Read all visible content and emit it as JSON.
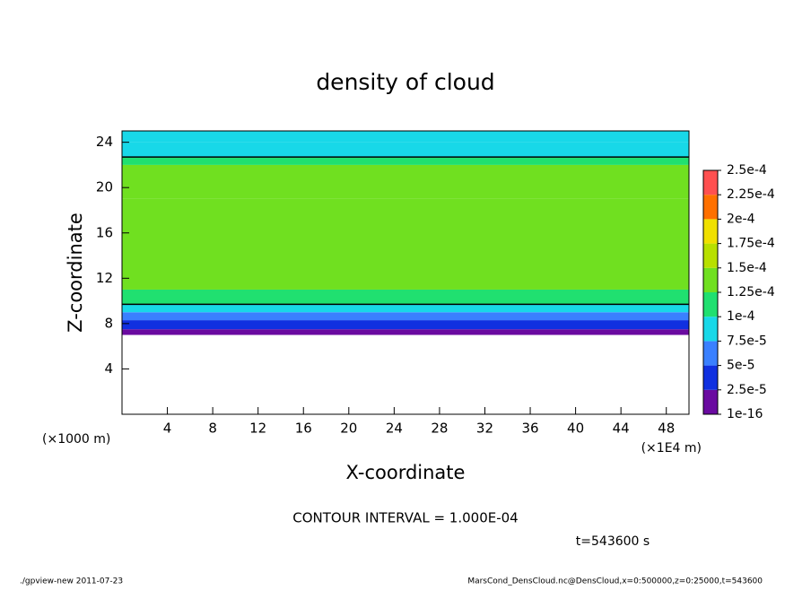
{
  "chart_data": {
    "type": "heatmap",
    "title": "density of cloud",
    "x_label": "X-coordinate",
    "y_label": "Z-coordinate",
    "x_unit": "(×1E4 m)",
    "y_unit": "(×1000 m)",
    "xlim": [
      0,
      50
    ],
    "xticks": [
      4,
      8,
      12,
      16,
      20,
      24,
      28,
      32,
      36,
      40,
      44,
      48
    ],
    "ylim": [
      0,
      25
    ],
    "yticks": [
      4,
      8,
      12,
      16,
      20,
      24
    ],
    "z_edges": [
      7,
      7.5,
      8.3,
      9,
      9.7,
      11,
      19,
      22,
      22.7,
      24,
      25
    ],
    "values": [
      1e-05,
      3e-05,
      6e-05,
      8e-05,
      0.00011,
      0.00014,
      0.00013,
      0.00011,
      9e-05,
      8e-05
    ],
    "colorbar_ticks": [
      {
        "value": 1e-16,
        "label": "1e-16"
      },
      {
        "value": 2.5e-05,
        "label": "2.5e-5"
      },
      {
        "value": 5e-05,
        "label": "5e-5"
      },
      {
        "value": 7.5e-05,
        "label": "7.5e-5"
      },
      {
        "value": 0.0001,
        "label": "1e-4"
      },
      {
        "value": 0.000125,
        "label": "1.25e-4"
      },
      {
        "value": 0.00015,
        "label": "1.5e-4"
      },
      {
        "value": 0.000175,
        "label": "1.75e-4"
      },
      {
        "value": 0.0002,
        "label": "2e-4"
      },
      {
        "value": 0.000225,
        "label": "2.25e-4"
      },
      {
        "value": 0.00025,
        "label": "2.5e-4"
      }
    ],
    "colors": [
      "#6a0aa0",
      "#1030e0",
      "#3a80ff",
      "#18d8e8",
      "#20e070",
      "#70e020",
      "#b8e000",
      "#f0e000",
      "#ff7000",
      "#ff5050"
    ],
    "contour_interval": {
      "value": 0.0001,
      "label": "CONTOUR INTERVAL = 1.000E-04"
    },
    "time_label": "t=543600 s",
    "footer_left": "./gpview-new   2011-07-23",
    "footer_right": "MarsCond_DensCloud.nc@DensCloud,x=0:500000,z=0:25000,t=543600"
  }
}
